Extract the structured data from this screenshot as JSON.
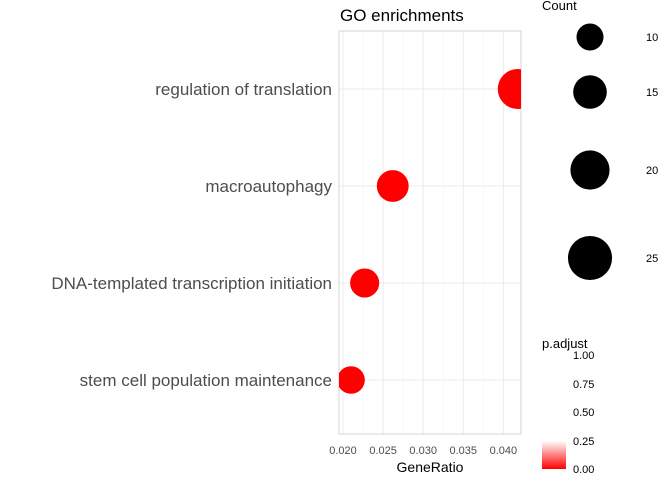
{
  "chart_data": {
    "type": "scatter",
    "title": "GO enrichments",
    "xlabel": "GeneRatio",
    "ylabel": "",
    "xlim": [
      0.0195,
      0.0422
    ],
    "x_ticks": [
      "0.020",
      "0.025",
      "0.030",
      "0.035",
      "0.040"
    ],
    "x_tick_values": [
      0.02,
      0.025,
      0.03,
      0.035,
      0.04
    ],
    "categories": [
      "regulation of translation",
      "macroautophagy",
      "DNA-templated transcription initiation",
      "stem cell population maintenance"
    ],
    "points": [
      {
        "term": "regulation of translation",
        "gene_ratio": 0.0418,
        "count": 19,
        "p_adjust": 0.0
      },
      {
        "term": "macroautophagy",
        "gene_ratio": 0.0262,
        "count": 12,
        "p_adjust": 0.0
      },
      {
        "term": "DNA-templated transcription initiation",
        "gene_ratio": 0.0227,
        "count": 10,
        "p_adjust": 0.0
      },
      {
        "term": "stem cell population maintenance",
        "gene_ratio": 0.021,
        "count": 9,
        "p_adjust": 0.0
      }
    ],
    "size_legend": {
      "title": "Count",
      "labels": [
        "10",
        "15",
        "20",
        "25"
      ],
      "values": [
        10,
        15,
        20,
        25
      ]
    },
    "color_legend": {
      "title": "p.adjust",
      "labels": [
        "1.00",
        "0.75",
        "0.50",
        "0.25",
        "0.00"
      ],
      "values": [
        1.0,
        0.75,
        0.5,
        0.25,
        0.0
      ],
      "low_color": "#ff0000",
      "high_color": "#ffffff"
    },
    "point_color": "#ff0000",
    "legend_point_color": "#000000",
    "grid": true,
    "legend_position": "right"
  }
}
